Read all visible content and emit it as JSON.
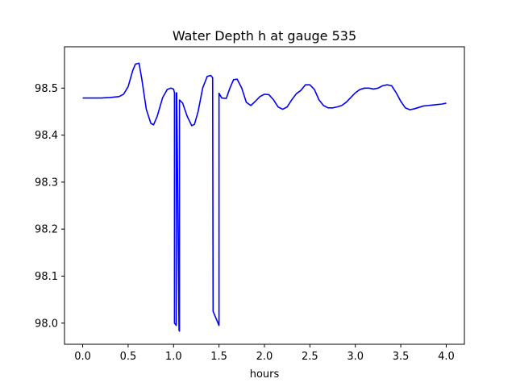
{
  "chart_data": {
    "type": "line",
    "title": "Water Depth h at gauge 535",
    "xlabel": "hours",
    "ylabel": "",
    "xlim": [
      -0.2,
      4.2
    ],
    "ylim": [
      97.955,
      98.588
    ],
    "xticks": [
      0.0,
      0.5,
      1.0,
      1.5,
      2.0,
      2.5,
      3.0,
      3.5,
      4.0
    ],
    "xtick_labels": [
      "0.0",
      "0.5",
      "1.0",
      "1.5",
      "2.0",
      "2.5",
      "3.0",
      "3.5",
      "4.0"
    ],
    "yticks": [
      98.0,
      98.1,
      98.2,
      98.3,
      98.4,
      98.5
    ],
    "ytick_labels": [
      "98.0",
      "98.1",
      "98.2",
      "98.3",
      "98.4",
      "98.5"
    ],
    "grid": false,
    "series": [
      {
        "color": "#0000ff",
        "x": [
          0.0,
          0.1,
          0.2,
          0.3,
          0.4,
          0.45,
          0.5,
          0.55,
          0.58,
          0.62,
          0.65,
          0.7,
          0.75,
          0.78,
          0.82,
          0.88,
          0.93,
          0.97,
          1.0,
          1.01,
          1.01,
          1.03,
          1.03,
          1.035,
          1.06,
          1.065,
          1.065,
          1.1,
          1.15,
          1.2,
          1.23,
          1.27,
          1.32,
          1.37,
          1.41,
          1.43,
          1.435,
          1.5,
          1.5,
          1.53,
          1.58,
          1.62,
          1.66,
          1.7,
          1.75,
          1.8,
          1.85,
          1.9,
          1.95,
          2.0,
          2.05,
          2.1,
          2.15,
          2.2,
          2.25,
          2.3,
          2.35,
          2.4,
          2.45,
          2.5,
          2.55,
          2.6,
          2.65,
          2.7,
          2.75,
          2.8,
          2.85,
          2.9,
          2.95,
          3.0,
          3.05,
          3.1,
          3.15,
          3.2,
          3.25,
          3.3,
          3.35,
          3.4,
          3.45,
          3.5,
          3.55,
          3.6,
          3.65,
          3.7,
          3.75,
          3.8,
          3.85,
          3.9,
          3.95,
          4.0
        ],
        "y": [
          98.479,
          98.479,
          98.479,
          98.48,
          98.482,
          98.487,
          98.503,
          98.537,
          98.551,
          98.553,
          98.52,
          98.455,
          98.425,
          98.422,
          98.44,
          98.48,
          98.497,
          98.5,
          98.498,
          98.49,
          98.0,
          97.995,
          98.49,
          98.49,
          97.985,
          97.983,
          98.475,
          98.468,
          98.44,
          98.42,
          98.423,
          98.45,
          98.5,
          98.525,
          98.527,
          98.522,
          98.025,
          97.995,
          98.489,
          98.479,
          98.478,
          98.5,
          98.518,
          98.519,
          98.5,
          98.47,
          98.463,
          98.472,
          98.482,
          98.487,
          98.486,
          98.475,
          98.46,
          98.455,
          98.46,
          98.475,
          98.488,
          98.495,
          98.507,
          98.507,
          98.497,
          98.475,
          98.463,
          98.458,
          98.458,
          98.46,
          98.463,
          98.47,
          98.48,
          98.49,
          98.497,
          98.5,
          98.5,
          98.498,
          98.5,
          98.505,
          98.507,
          98.505,
          98.49,
          98.472,
          98.458,
          98.454,
          98.456,
          98.459,
          98.462,
          98.463,
          98.464,
          98.465,
          98.466,
          98.468
        ]
      }
    ]
  }
}
